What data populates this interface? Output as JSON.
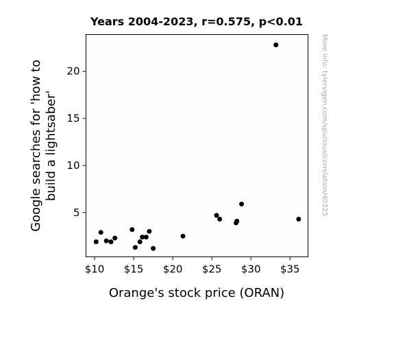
{
  "chart_data": {
    "type": "scatter",
    "title": "Years 2004-2023, r=0.575, p<0.01",
    "xlabel": "Orange's stock price (ORAN)",
    "ylabel_lines": [
      "Google searches for 'how to",
      "build a lightsaber'"
    ],
    "xlim": [
      8.9,
      37.3
    ],
    "ylim": [
      0.3,
      23.9
    ],
    "xticks": [
      10,
      15,
      20,
      25,
      30,
      35
    ],
    "xtick_labels": [
      "$10",
      "$15",
      "$20",
      "$25",
      "$30",
      "$35"
    ],
    "yticks": [
      5,
      10,
      15,
      20
    ],
    "ytick_labels": [
      "5",
      "10",
      "15",
      "20"
    ],
    "grid": false,
    "legend": "none",
    "marker_color": "#000000",
    "points": [
      {
        "x": 10.2,
        "y": 1.9
      },
      {
        "x": 10.8,
        "y": 2.9
      },
      {
        "x": 11.5,
        "y": 2.0
      },
      {
        "x": 12.1,
        "y": 1.9
      },
      {
        "x": 12.6,
        "y": 2.3
      },
      {
        "x": 14.8,
        "y": 3.2
      },
      {
        "x": 15.2,
        "y": 1.3
      },
      {
        "x": 15.8,
        "y": 1.9
      },
      {
        "x": 16.1,
        "y": 2.4
      },
      {
        "x": 16.6,
        "y": 2.4
      },
      {
        "x": 17.0,
        "y": 3.0
      },
      {
        "x": 17.5,
        "y": 1.2
      },
      {
        "x": 21.3,
        "y": 2.5
      },
      {
        "x": 25.6,
        "y": 4.7
      },
      {
        "x": 26.0,
        "y": 4.3
      },
      {
        "x": 28.1,
        "y": 3.9
      },
      {
        "x": 28.2,
        "y": 4.1
      },
      {
        "x": 28.8,
        "y": 5.9
      },
      {
        "x": 33.2,
        "y": 22.8
      },
      {
        "x": 36.1,
        "y": 4.3
      }
    ]
  },
  "watermark": "More info: tylervigen.com/spurious/correlation/40325",
  "colors": {
    "axes": "#000000",
    "plot_background": "#fffefe",
    "watermark": "#aaaaaa"
  }
}
